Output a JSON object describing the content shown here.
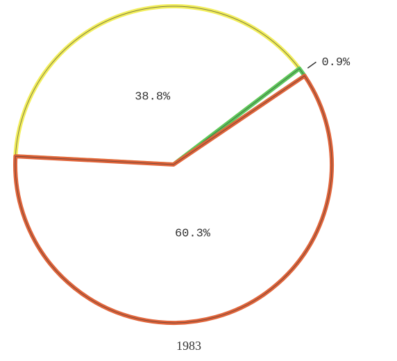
{
  "chart_data": {
    "type": "pie",
    "title": "1983",
    "values": [
      38.8,
      0.9,
      60.3
    ],
    "value_labels": [
      "38.8%",
      "0.9%",
      "60.3%"
    ],
    "colors": [
      "#f2ee5a",
      "#5cc85c",
      "#e0643a"
    ]
  }
}
